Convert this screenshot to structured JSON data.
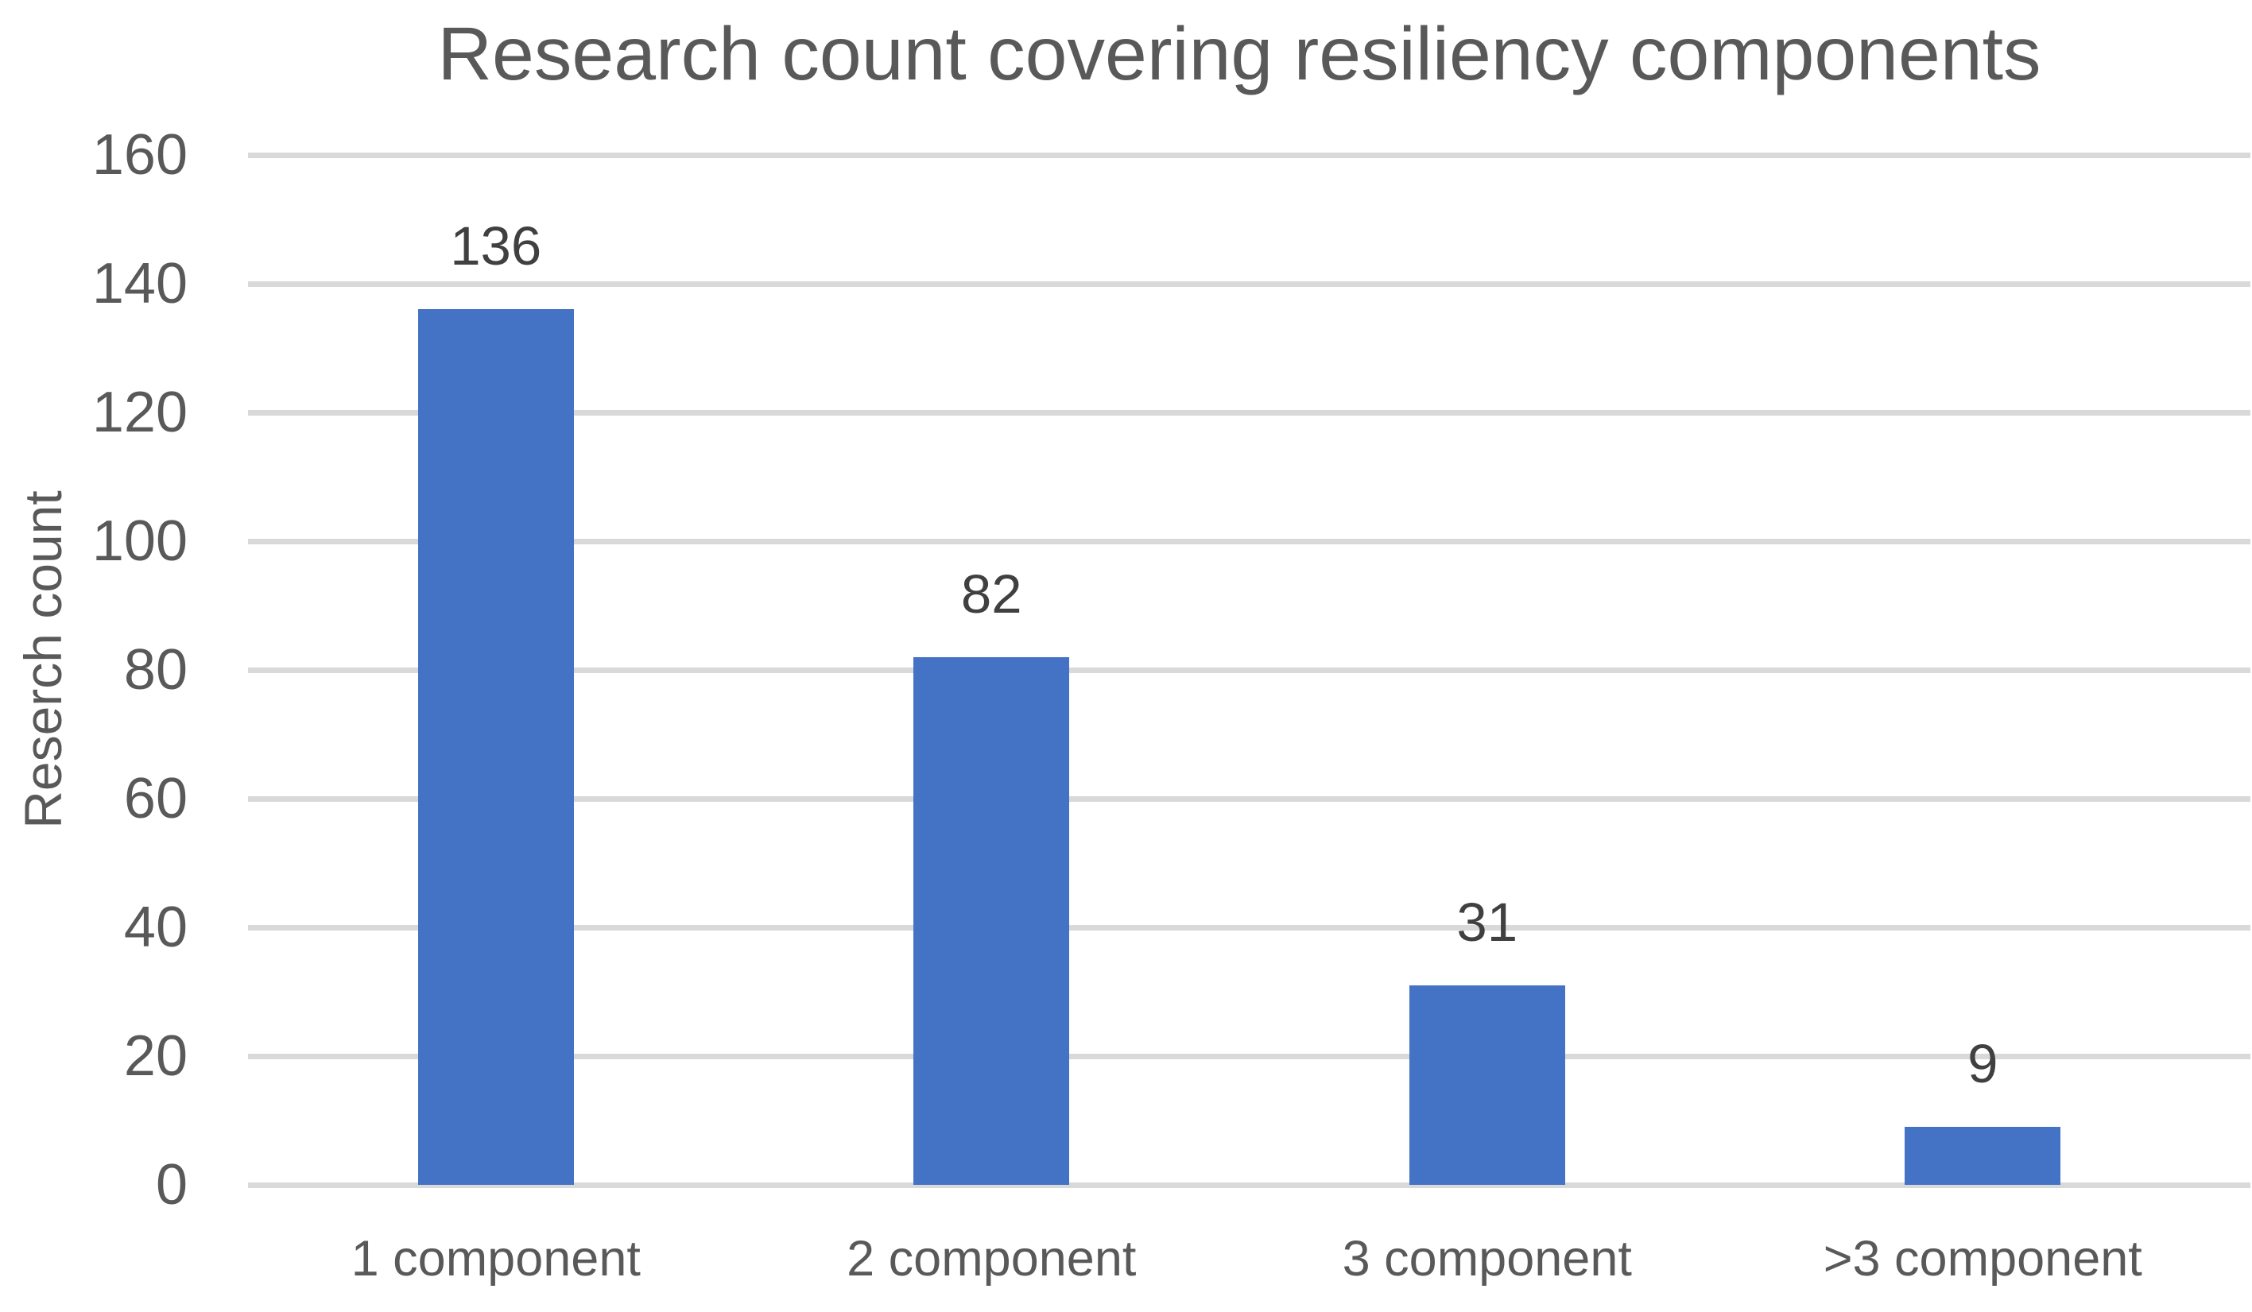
{
  "chart_data": {
    "type": "bar",
    "title": "Research count covering resiliency components",
    "categories": [
      "1 component",
      "2 component",
      "3 component",
      ">3 component"
    ],
    "values": [
      136,
      82,
      31,
      9
    ],
    "data_labels": [
      "136",
      "82",
      "31",
      "9"
    ],
    "xlabel": "",
    "ylabel": "Reserch count",
    "ylim": [
      0,
      160
    ],
    "yticks": [
      0,
      20,
      40,
      60,
      80,
      100,
      120,
      140,
      160
    ],
    "grid": true,
    "legend": false,
    "data_labels_position": "outside-end"
  },
  "colors": {
    "bar": "#4472C4",
    "gridline": "#D9D9D9",
    "axis_line": "#D9D9D9",
    "axis_text": "#595959",
    "title_text": "#595959",
    "data_label_text": "#404040",
    "background": "#FFFFFF"
  }
}
